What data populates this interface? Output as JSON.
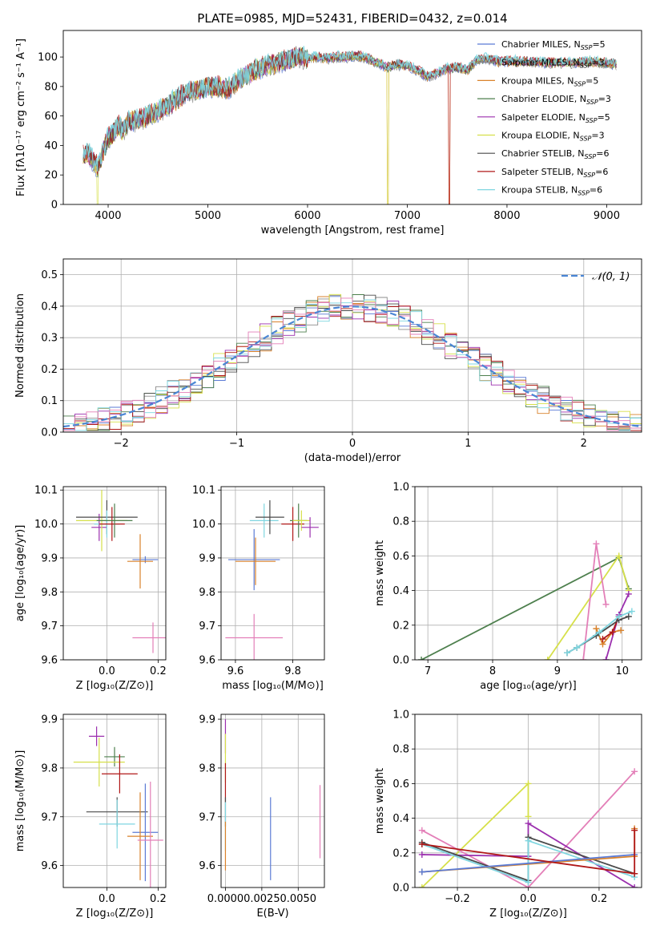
{
  "figure": {
    "title": "PLATE=0985, MJD=52431, FIBERID=0432, z=0.014"
  },
  "colors": {
    "Chabrier MILES": "#5b7bd5",
    "Salpeter MILES": "#8c8c8c",
    "Kroupa MILES": "#d9822b",
    "Chabrier ELODIE": "#4d7f4d",
    "Salpeter ELODIE": "#9b2fae",
    "Kroupa ELODIE": "#d6e04a",
    "Chabrier STELIB": "#4a4a4a",
    "Salpeter STELIB": "#b01818",
    "Kroupa STELIB": "#7fd6e0",
    "normal": "#4a86d4",
    "pink": "#e37fb8"
  },
  "chart_data": [
    {
      "id": "spectrum",
      "type": "line",
      "title": "PLATE=0985, MJD=52431, FIBERID=0432, z=0.014",
      "xlabel": "wavelength [Angstrom, rest frame]",
      "ylabel": "Flux [fλ10⁻¹⁷ erg cm⁻² s⁻¹ A⁻¹]",
      "xlim": [
        3550,
        9350
      ],
      "ylim": [
        0,
        118
      ],
      "xticks": [
        4000,
        5000,
        6000,
        7000,
        8000,
        9000
      ],
      "yticks": [
        0,
        20,
        40,
        60,
        80,
        100
      ],
      "grid": false,
      "legend_position": "upper-right",
      "legend": [
        "Chabrier MILES, N_SSP=5",
        "Salpeter MILES, N_SSP=3",
        "Kroupa MILES, N_SSP=5",
        "Chabrier ELODIE, N_SSP=3",
        "Salpeter ELODIE, N_SSP=5",
        "Kroupa ELODIE, N_SSP=3",
        "Chabrier STELIB, N_SSP=6",
        "Salpeter STELIB, N_SSP=6",
        "Kroupa STELIB, N_SSP=6"
      ],
      "legend_keys": [
        "Chabrier MILES",
        "Salpeter MILES",
        "Kroupa MILES",
        "Chabrier ELODIE",
        "Salpeter ELODIE",
        "Kroupa ELODIE",
        "Chabrier STELIB",
        "Salpeter STELIB",
        "Kroupa STELIB"
      ],
      "envelope": {
        "x": [
          3750,
          3800,
          3850,
          3900,
          3950,
          4000,
          4050,
          4100,
          4150,
          4200,
          4300,
          4400,
          4500,
          4600,
          4700,
          4800,
          4900,
          5000,
          5100,
          5200,
          5300,
          5400,
          5500,
          5600,
          5700,
          5800,
          5900,
          6000,
          6100,
          6200,
          6300,
          6400,
          6500,
          6600,
          6700,
          6800,
          6900,
          7000,
          7100,
          7200,
          7300,
          7400,
          7500,
          7600,
          7700,
          7800,
          7900,
          8000,
          8200,
          8400,
          8600,
          8800,
          9000,
          9100
        ],
        "y": [
          33,
          35,
          29,
          25,
          36,
          45,
          48,
          54,
          50,
          56,
          57,
          60,
          63,
          67,
          72,
          76,
          78,
          79,
          80,
          78,
          84,
          88,
          92,
          94,
          96,
          98,
          100,
          99,
          100,
          99,
          100,
          100,
          101,
          99,
          96,
          93,
          95,
          94,
          91,
          87,
          89,
          92,
          93,
          91,
          98,
          99,
          97,
          97,
          97,
          96,
          96,
          97,
          96,
          95
        ]
      },
      "dropouts": [
        {
          "series": "Kroupa ELODIE",
          "x": 3895
        },
        {
          "series": "Kroupa ELODIE",
          "x": 6805
        },
        {
          "series": "Kroupa MILES",
          "x": 6805
        },
        {
          "series": "Kroupa MILES",
          "x": 7420
        },
        {
          "series": "Salpeter STELIB",
          "x": 7420
        }
      ]
    },
    {
      "id": "residuals",
      "type": "line",
      "xlabel": "(data-model)/error",
      "ylabel": "Normed distribution",
      "xlim": [
        -2.5,
        2.5
      ],
      "ylim": [
        0,
        0.55
      ],
      "xticks": [
        -2,
        -1,
        0,
        1,
        2
      ],
      "xticklabels": [
        "−2",
        "−1",
        "0",
        "1",
        "2"
      ],
      "yticks": [
        0,
        0.1,
        0.2,
        0.3,
        0.4,
        0.5
      ],
      "grid": true,
      "legend_position": "upper-right",
      "legend": [
        "𝒩(0, 1)"
      ],
      "bin_width": 0.1,
      "gaussian": {
        "mean": 0,
        "sigma": 1
      }
    },
    {
      "id": "age-vs-z",
      "type": "scatter",
      "xlabel": "Z [log₁₀(Z/Z⊙)]",
      "ylabel": "age  [log₁₀(age/yr)]",
      "xlim": [
        -0.17,
        0.23
      ],
      "ylim": [
        9.6,
        10.11
      ],
      "xticks": [
        0.0,
        0.2
      ],
      "xticklabels": [
        "0.0",
        "0.2"
      ],
      "yticks": [
        9.6,
        9.7,
        9.8,
        9.9,
        10.0,
        10.1
      ],
      "grid": true,
      "points": [
        {
          "key": "Chabrier MILES",
          "x": 0.15,
          "y": 9.895,
          "xerr": 0.05,
          "yerr": 0.01
        },
        {
          "key": "Kroupa MILES",
          "x": 0.13,
          "y": 9.89,
          "xerr": 0.05,
          "yerr": 0.08
        },
        {
          "key": "pink",
          "x": 0.18,
          "y": 9.665,
          "xerr": 0.08,
          "yerr": 0.045
        },
        {
          "key": "Salpeter ELODIE",
          "x": -0.03,
          "y": 9.99,
          "xerr": 0.03,
          "yerr": 0.04
        },
        {
          "key": "Kroupa ELODIE",
          "x": -0.02,
          "y": 10.01,
          "xerr": 0.1,
          "yerr": 0.09
        },
        {
          "key": "Chabrier STELIB",
          "x": 0.0,
          "y": 10.02,
          "xerr": 0.12,
          "yerr": 0.05
        },
        {
          "key": "Kroupa STELIB",
          "x": 0.0,
          "y": 10.0,
          "xerr": 0.05,
          "yerr": 0.04
        },
        {
          "key": "Salpeter STELIB",
          "x": 0.02,
          "y": 10.0,
          "xerr": 0.05,
          "yerr": 0.05
        },
        {
          "key": "Chabrier ELODIE",
          "x": 0.03,
          "y": 10.01,
          "xerr": 0.07,
          "yerr": 0.05
        }
      ]
    },
    {
      "id": "age-vs-mass",
      "type": "scatter",
      "xlabel": "mass [log₁₀(M/M⊙)]",
      "ylabel": "",
      "xlim": [
        9.55,
        9.91
      ],
      "ylim": [
        9.6,
        10.11
      ],
      "xticks": [
        9.6,
        9.8
      ],
      "xticklabels": [
        "9.6",
        "9.8"
      ],
      "yticks": [
        9.6,
        9.7,
        9.8,
        9.9,
        10.0,
        10.1
      ],
      "grid": true,
      "points": [
        {
          "key": "Chabrier MILES",
          "x": 9.665,
          "y": 9.895,
          "xerr": 0.09,
          "yerr": 0.09
        },
        {
          "key": "Kroupa MILES",
          "x": 9.67,
          "y": 9.89,
          "xerr": 0.07,
          "yerr": 0.07
        },
        {
          "key": "pink",
          "x": 9.665,
          "y": 9.665,
          "xerr": 0.1,
          "yerr": 0.07
        },
        {
          "key": "Kroupa STELIB",
          "x": 9.7,
          "y": 10.01,
          "xerr": 0.05,
          "yerr": 0.05
        },
        {
          "key": "Chabrier STELIB",
          "x": 9.72,
          "y": 10.02,
          "xerr": 0.05,
          "yerr": 0.05
        },
        {
          "key": "Salpeter STELIB",
          "x": 9.8,
          "y": 10.0,
          "xerr": 0.04,
          "yerr": 0.05
        },
        {
          "key": "Chabrier ELODIE",
          "x": 9.82,
          "y": 10.01,
          "xerr": 0.03,
          "yerr": 0.05
        },
        {
          "key": "Kroupa ELODIE",
          "x": 9.83,
          "y": 10.01,
          "xerr": 0.03,
          "yerr": 0.03
        },
        {
          "key": "Salpeter ELODIE",
          "x": 9.86,
          "y": 9.99,
          "xerr": 0.03,
          "yerr": 0.03
        }
      ]
    },
    {
      "id": "mass-weight-vs-age",
      "type": "line",
      "xlabel": "age  [log₁₀(age/yr)]",
      "ylabel": "mass weight",
      "xlim": [
        6.8,
        10.3
      ],
      "ylim": [
        0,
        1.0
      ],
      "xticks": [
        7,
        8,
        9,
        10
      ],
      "yticks": [
        0.0,
        0.2,
        0.4,
        0.6,
        0.8,
        1.0
      ],
      "grid": true,
      "series": [
        {
          "key": "Chabrier ELODIE",
          "x": [
            6.9,
            9.95,
            10.1
          ],
          "y": [
            0.0,
            0.59,
            0.41
          ]
        },
        {
          "key": "Kroupa ELODIE",
          "x": [
            8.85,
            9.95,
            10.1
          ],
          "y": [
            0.0,
            0.6,
            0.4
          ]
        },
        {
          "key": "pink",
          "x": [
            9.4,
            9.6,
            9.75
          ],
          "y": [
            0.0,
            0.67,
            0.32
          ]
        },
        {
          "key": "Salpeter ELODIE",
          "x": [
            9.75,
            9.95,
            10.1
          ],
          "y": [
            0.0,
            0.26,
            0.38
          ]
        },
        {
          "key": "Kroupa MILES",
          "x": [
            9.6,
            9.7,
            9.85,
            9.98
          ],
          "y": [
            0.18,
            0.09,
            0.16,
            0.17
          ]
        },
        {
          "key": "Salpeter STELIB",
          "x": [
            9.7,
            9.85,
            9.95
          ],
          "y": [
            0.12,
            0.16,
            0.25
          ]
        },
        {
          "key": "Chabrier STELIB",
          "x": [
            9.15,
            9.3,
            9.6,
            9.95,
            10.1
          ],
          "y": [
            0.04,
            0.07,
            0.14,
            0.23,
            0.25
          ]
        },
        {
          "key": "Kroupa STELIB",
          "x": [
            9.15,
            9.3,
            9.65,
            9.95,
            10.15
          ],
          "y": [
            0.04,
            0.07,
            0.16,
            0.25,
            0.28
          ]
        }
      ]
    },
    {
      "id": "mass-vs-z",
      "type": "scatter",
      "xlabel": "Z [log₁₀(Z/Z⊙)]",
      "ylabel": "mass [log₁₀(M/M⊙)]",
      "xlim": [
        -0.17,
        0.23
      ],
      "ylim": [
        9.555,
        9.91
      ],
      "xticks": [
        0.0,
        0.2
      ],
      "xticklabels": [
        "0.0",
        "0.2"
      ],
      "yticks": [
        9.6,
        9.7,
        9.8,
        9.9
      ],
      "grid": true,
      "points": [
        {
          "key": "Salpeter ELODIE",
          "x": -0.04,
          "y": 9.865,
          "xerr": 0.03,
          "yerr": 0.02
        },
        {
          "key": "Chabrier ELODIE",
          "x": 0.03,
          "y": 9.823,
          "xerr": 0.04,
          "yerr": 0.02
        },
        {
          "key": "Kroupa ELODIE",
          "x": -0.03,
          "y": 9.812,
          "xerr": 0.1,
          "yerr": 0.05
        },
        {
          "key": "Salpeter STELIB",
          "x": 0.05,
          "y": 9.788,
          "xerr": 0.07,
          "yerr": 0.04
        },
        {
          "key": "Chabrier STELIB",
          "x": 0.04,
          "y": 9.71,
          "xerr": 0.12,
          "yerr": 0.03
        },
        {
          "key": "Kroupa STELIB",
          "x": 0.04,
          "y": 9.685,
          "xerr": 0.07,
          "yerr": 0.05
        },
        {
          "key": "Chabrier MILES",
          "x": 0.15,
          "y": 9.668,
          "xerr": 0.05,
          "yerr": 0.1
        },
        {
          "key": "Kroupa MILES",
          "x": 0.13,
          "y": 9.66,
          "xerr": 0.05,
          "yerr": 0.09
        },
        {
          "key": "pink",
          "x": 0.17,
          "y": 9.652,
          "xerr": 0.05,
          "yerr": 0.12
        }
      ]
    },
    {
      "id": "mass-vs-ebv",
      "type": "scatter",
      "xlabel": "E(B-V)",
      "ylabel": "",
      "xlim": [
        -0.0003,
        0.0068
      ],
      "ylim": [
        9.555,
        9.91
      ],
      "xticks": [
        0.0,
        0.0025,
        0.005
      ],
      "xticklabels": [
        "0.0000",
        "0.0025",
        "0.0050"
      ],
      "yticks": [
        9.6,
        9.7,
        9.8,
        9.9
      ],
      "grid": true,
      "points": [
        {
          "key": "Salpeter ELODIE",
          "x": 0.0,
          "y": 9.865,
          "xerr": 0,
          "yerr": 0.035
        },
        {
          "key": "Kroupa ELODIE",
          "x": 0.0,
          "y": 9.82,
          "xerr": 0,
          "yerr": 0.05
        },
        {
          "key": "Salpeter STELIB",
          "x": 0.0,
          "y": 9.77,
          "xerr": 0,
          "yerr": 0.04
        },
        {
          "key": "Chabrier STELIB",
          "x": 0.0,
          "y": 9.71,
          "xerr": 0,
          "yerr": 0.03
        },
        {
          "key": "Kroupa STELIB",
          "x": 0.0,
          "y": 9.68,
          "xerr": 0,
          "yerr": 0.05
        },
        {
          "key": "Kroupa MILES",
          "x": 0.0,
          "y": 9.64,
          "xerr": 0,
          "yerr": 0.05
        },
        {
          "key": "Chabrier MILES",
          "x": 0.0031,
          "y": 9.655,
          "xerr": 0,
          "yerr": 0.085
        },
        {
          "key": "pink",
          "x": 0.0065,
          "y": 9.69,
          "xerr": 0,
          "yerr": 0.075
        }
      ]
    },
    {
      "id": "mass-weight-vs-z",
      "type": "line",
      "xlabel": "Z [log₁₀(Z/Z⊙)]",
      "ylabel": "mass weight",
      "xlim": [
        -0.32,
        0.32
      ],
      "ylim": [
        0,
        1.0
      ],
      "xticks": [
        -0.2,
        0.0,
        0.2
      ],
      "xticklabels": [
        "−0.2",
        "0.0",
        "0.2"
      ],
      "yticks": [
        0.0,
        0.2,
        0.4,
        0.6,
        0.8,
        1.0
      ],
      "grid": true,
      "series": [
        {
          "key": "Kroupa ELODIE",
          "x": [
            -0.3,
            0.0,
            0.0
          ],
          "y": [
            0.0,
            0.6,
            0.41
          ]
        },
        {
          "key": "pink",
          "x": [
            -0.3,
            0.0,
            0.3
          ],
          "y": [
            0.33,
            0.0,
            0.67
          ]
        },
        {
          "key": "Salpeter ELODIE",
          "x": [
            -0.3,
            0.0,
            0.0,
            0.3
          ],
          "y": [
            0.19,
            0.18,
            0.37,
            0.0
          ]
        },
        {
          "key": "Chabrier STELIB",
          "x": [
            -0.3,
            0.0,
            0.0,
            0.3
          ],
          "y": [
            0.26,
            0.04,
            0.29,
            0.08
          ]
        },
        {
          "key": "Kroupa STELIB",
          "x": [
            -0.3,
            0.0,
            0.0,
            0.3
          ],
          "y": [
            0.25,
            0.03,
            0.27,
            0.06
          ]
        },
        {
          "key": "Kroupa MILES",
          "x": [
            -0.3,
            0.3,
            0.3
          ],
          "y": [
            0.09,
            0.18,
            0.34
          ]
        },
        {
          "key": "Chabrier MILES",
          "x": [
            -0.3,
            0.3
          ],
          "y": [
            0.09,
            0.19
          ]
        },
        {
          "key": "Salpeter STELIB",
          "x": [
            -0.3,
            0.3,
            0.3
          ],
          "y": [
            0.25,
            0.08,
            0.33
          ]
        }
      ]
    }
  ]
}
